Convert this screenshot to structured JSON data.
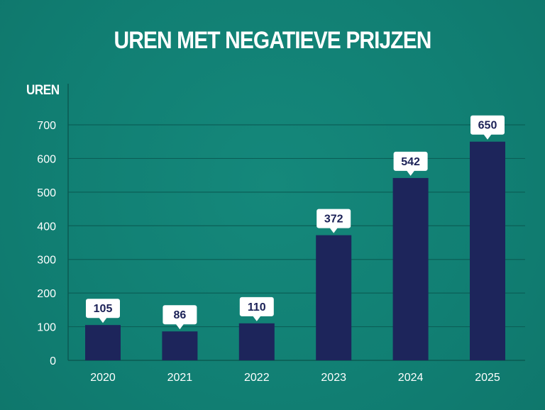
{
  "chart_data": {
    "type": "bar",
    "title": "UREN MET NEGATIEVE PRIJZEN",
    "ylabel": "UREN",
    "xlabel": "",
    "categories": [
      "2020",
      "2021",
      "2022",
      "2023",
      "2024",
      "2025"
    ],
    "values": [
      105,
      86,
      110,
      372,
      542,
      650
    ],
    "data_labels": [
      "105",
      "86",
      "110",
      "372",
      "542",
      "650"
    ],
    "y_ticks": [
      "0",
      "100",
      "200",
      "300",
      "400",
      "500",
      "600",
      "700"
    ],
    "ylim": [
      0,
      700
    ],
    "grid": true,
    "legend": "none",
    "colors": {
      "background": "#117f73",
      "bar": "#1d255b",
      "gridline": "#0b5f57",
      "label_box": "#ffffff",
      "label_text": "#1b2157",
      "text": "#ffffff"
    }
  }
}
